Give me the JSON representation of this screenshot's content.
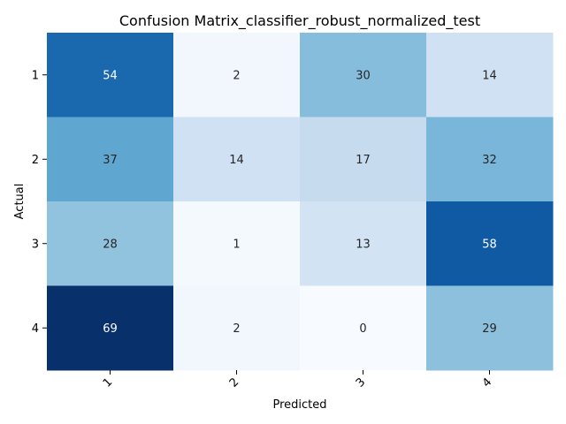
{
  "chart_data": {
    "type": "heatmap",
    "title": "Confusion Matrix_classifier_robust_normalized_test",
    "xlabel": "Predicted",
    "ylabel": "Actual",
    "x_categories": [
      "1",
      "2",
      "3",
      "4"
    ],
    "y_categories": [
      "1",
      "2",
      "3",
      "4"
    ],
    "values": [
      [
        54,
        2,
        30,
        14
      ],
      [
        37,
        14,
        17,
        32
      ],
      [
        28,
        1,
        13,
        58
      ],
      [
        69,
        2,
        0,
        29
      ]
    ],
    "colormap": "Blues",
    "value_range": [
      0,
      69
    ],
    "colorbar": false,
    "grid": false
  }
}
